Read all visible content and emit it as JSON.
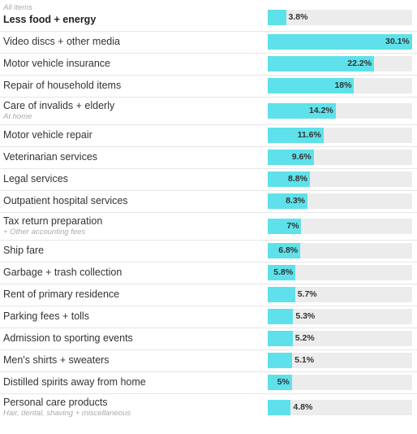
{
  "chart_data": {
    "type": "bar",
    "orientation": "horizontal",
    "xlim": [
      0,
      30.1
    ],
    "unit": "%",
    "colors": {
      "bar": "#5ee1ea",
      "track": "#ececec",
      "text": "#333333",
      "subtext": "#aaaaaa"
    },
    "rows": [
      {
        "label": "Less food + energy",
        "sublabel": "All items",
        "sublabel_position": "above",
        "value": 3.8,
        "value_label": "3.8%",
        "emphasis": true
      },
      {
        "label": "Video discs + other media",
        "sublabel": "",
        "value": 30.1,
        "value_label": "30.1%"
      },
      {
        "label": "Motor vehicle insurance",
        "sublabel": "",
        "value": 22.2,
        "value_label": "22.2%"
      },
      {
        "label": "Repair of household items",
        "sublabel": "",
        "value": 18,
        "value_label": "18%"
      },
      {
        "label": "Care of invalids + elderly",
        "sublabel": "At home",
        "value": 14.2,
        "value_label": "14.2%"
      },
      {
        "label": "Motor vehicle repair",
        "sublabel": "",
        "value": 11.6,
        "value_label": "11.6%"
      },
      {
        "label": "Veterinarian services",
        "sublabel": "",
        "value": 9.6,
        "value_label": "9.6%"
      },
      {
        "label": "Legal services",
        "sublabel": "",
        "value": 8.8,
        "value_label": "8.8%"
      },
      {
        "label": "Outpatient hospital services",
        "sublabel": "",
        "value": 8.3,
        "value_label": "8.3%"
      },
      {
        "label": "Tax return preparation",
        "sublabel": "+ Other accounting fees",
        "value": 7,
        "value_label": "7%"
      },
      {
        "label": "Ship fare",
        "sublabel": "",
        "value": 6.8,
        "value_label": "6.8%"
      },
      {
        "label": "Garbage + trash collection",
        "sublabel": "",
        "value": 5.8,
        "value_label": "5.8%"
      },
      {
        "label": "Rent of primary residence",
        "sublabel": "",
        "value": 5.7,
        "value_label": "5.7%"
      },
      {
        "label": "Parking fees + tolls",
        "sublabel": "",
        "value": 5.3,
        "value_label": "5.3%"
      },
      {
        "label": "Admission to sporting events",
        "sublabel": "",
        "value": 5.2,
        "value_label": "5.2%"
      },
      {
        "label": "Men's shirts + sweaters",
        "sublabel": "",
        "value": 5.1,
        "value_label": "5.1%"
      },
      {
        "label": "Distilled spirits away from home",
        "sublabel": "",
        "value": 5,
        "value_label": "5%"
      },
      {
        "label": "Personal care products",
        "sublabel": "Hair, dental, shaving + miscellaneous",
        "value": 4.8,
        "value_label": "4.8%"
      }
    ]
  }
}
